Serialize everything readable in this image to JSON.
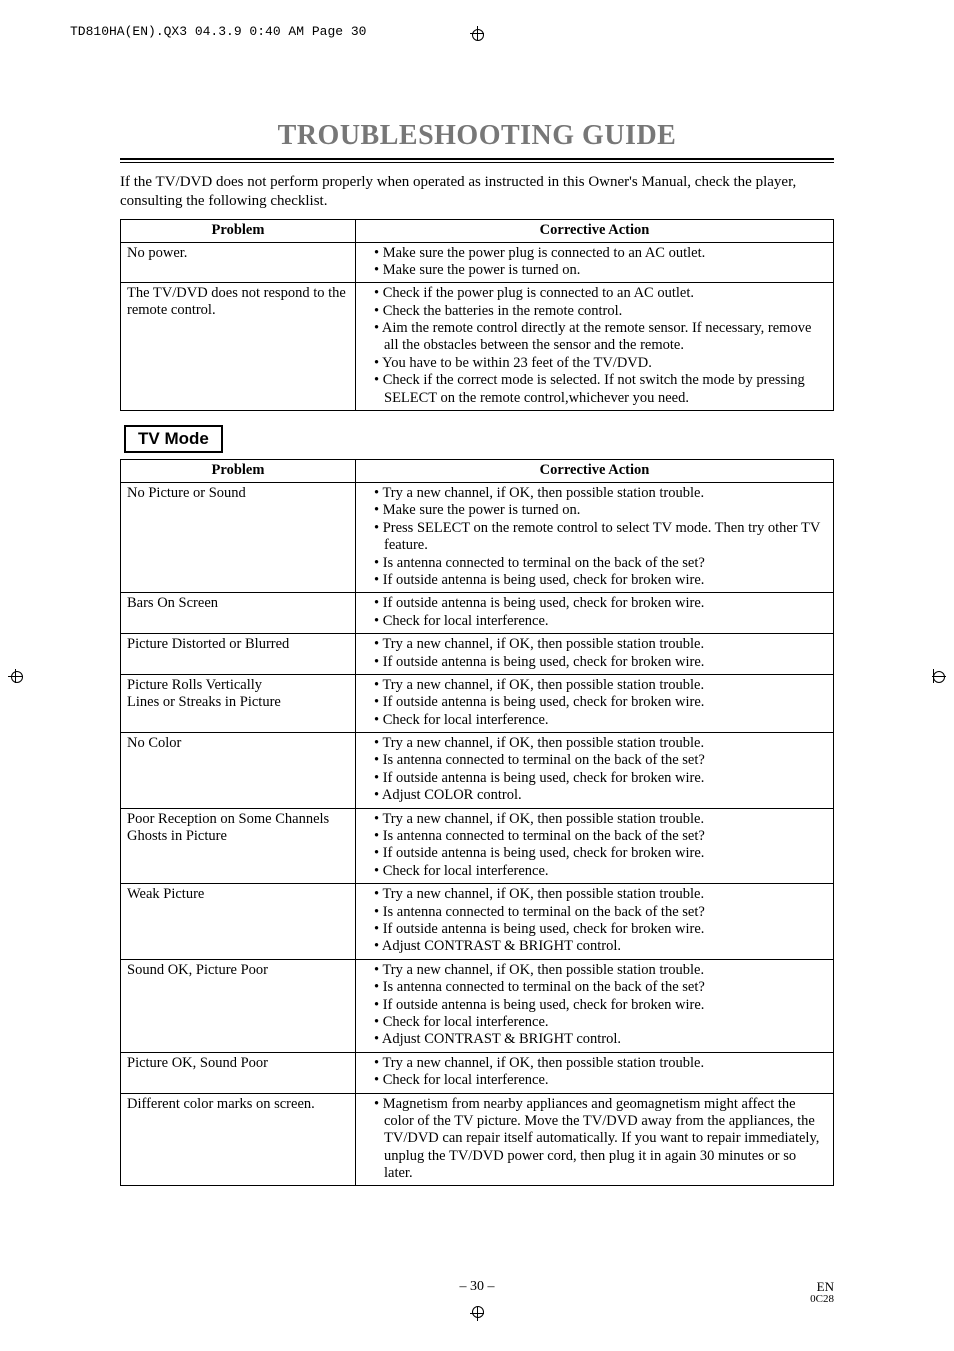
{
  "header_tag": "TD810HA(EN).QX3  04.3.9  0:40 AM  Page 30",
  "title": "TROUBLESHOOTING GUIDE",
  "intro": "If the TV/DVD does not perform properly when operated as instructed in this Owner's Manual, check the player, consulting the following checklist.",
  "columns": {
    "problem": "Problem",
    "action": "Corrective Action"
  },
  "general_rows": [
    {
      "problem": "No power.",
      "actions": [
        "Make sure the power plug is connected to an AC outlet.",
        "Make sure the power is turned on."
      ]
    },
    {
      "problem": "The TV/DVD does not respond to the remote control.",
      "actions": [
        "Check if the power plug is connected to an AC outlet.",
        "Check the batteries in the remote control.",
        "Aim the remote control directly at the remote sensor.  If necessary, remove all the obstacles between the sensor and the remote.",
        "You have to be within 23 feet of the TV/DVD.",
        "Check if the correct mode is selected.  If not switch the mode by pressing SELECT on the remote control,whichever you need."
      ]
    }
  ],
  "mode_label": "TV Mode",
  "tv_rows": [
    {
      "problem": "No Picture or Sound",
      "actions": [
        "Try a new channel, if OK, then possible station trouble.",
        "Make sure the power is turned on.",
        "Press SELECT on the remote control to select TV mode.  Then try other TV feature.",
        "Is antenna connected to terminal on the back of the set?",
        "If outside antenna is being used, check for broken wire."
      ]
    },
    {
      "problem": "Bars On Screen",
      "actions": [
        "If outside antenna is being used, check for broken wire.",
        "Check for local interference."
      ]
    },
    {
      "problem": "Picture Distorted or Blurred",
      "actions": [
        "Try a new channel, if OK, then possible station trouble.",
        "If outside antenna is being used, check for broken wire."
      ]
    },
    {
      "problem": "Picture Rolls Vertically\nLines or Streaks in Picture",
      "actions": [
        "Try a new channel, if OK, then possible station trouble.",
        "If outside antenna is being used, check for broken wire.",
        "Check for local interference."
      ]
    },
    {
      "problem": "No Color",
      "actions": [
        "Try a new channel, if OK, then possible station trouble.",
        "Is antenna connected to terminal on the back of the set?",
        "If outside antenna is being used, check for broken wire.",
        "Adjust COLOR control."
      ]
    },
    {
      "problem": "Poor Reception on Some Channels\nGhosts in Picture",
      "actions": [
        "Try a new channel, if OK, then possible station trouble.",
        "Is antenna connected to terminal on the back of the set?",
        "If outside antenna is being used, check for broken wire.",
        "Check for local interference."
      ]
    },
    {
      "problem": "Weak Picture",
      "actions": [
        "Try a new channel, if OK, then possible station trouble.",
        "Is antenna connected to terminal on the back of the set?",
        "If outside antenna is being used, check for broken wire.",
        "Adjust CONTRAST & BRIGHT control."
      ]
    },
    {
      "problem": "Sound OK, Picture Poor",
      "actions": [
        "Try a new channel, if OK, then possible station trouble.",
        "Is antenna connected to terminal on the back of the set?",
        "If outside antenna is being used, check for broken wire.",
        "Check for local interference.",
        "Adjust CONTRAST & BRIGHT control."
      ]
    },
    {
      "problem": "Picture OK, Sound Poor",
      "actions": [
        "Try a new channel, if OK, then possible station trouble.",
        "Check for local interference."
      ]
    },
    {
      "problem": "Different color marks on screen.",
      "actions": [
        "Magnetism from nearby appliances and geomagnetism might affect the color of the TV picture. Move the TV/DVD away from the appliances, the TV/DVD can repair itself automatically. If you want to repair immediately, unplug the TV/DVD power cord, then plug it in again 30 minutes or so later."
      ]
    }
  ],
  "footer": {
    "page": "– 30 –",
    "en": "EN",
    "code": "0C28"
  }
}
